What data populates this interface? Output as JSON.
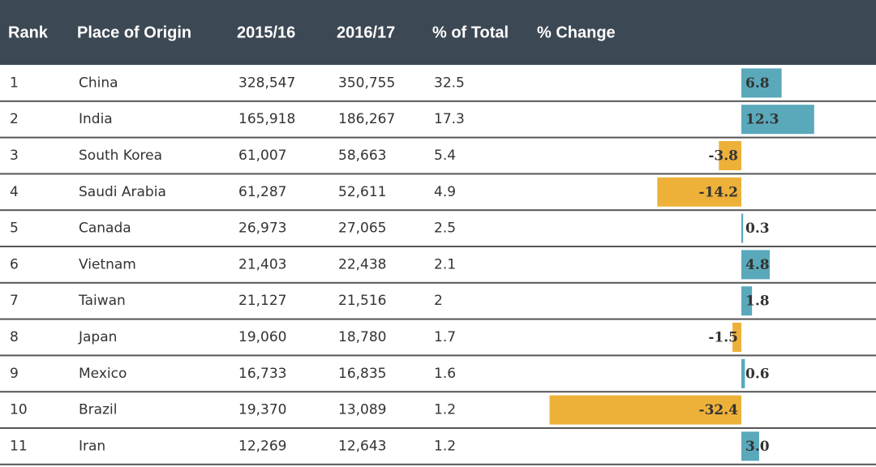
{
  "table": {
    "header": [
      "Rank",
      "Place of Origin",
      "2015/16",
      "2016/17",
      "% of Total",
      "% Change"
    ],
    "rows": [
      [
        "1",
        "China",
        "328,547",
        "350,755",
        "32.5"
      ],
      [
        "2",
        "India",
        "165,918",
        "186,267",
        "17.3"
      ],
      [
        "3",
        "South Korea",
        "61,007",
        "58,663",
        "5.4"
      ],
      [
        "4",
        "Saudi Arabia",
        "61,287",
        "52,611",
        "4.9"
      ],
      [
        "5",
        "Canada",
        "26,973",
        "27,065",
        "2.5"
      ],
      [
        "6",
        "Vietnam",
        "21,403",
        "22,438",
        "2.1"
      ],
      [
        "7",
        "Taiwan",
        "21,127",
        "21,516",
        "2"
      ],
      [
        "8",
        "Japan",
        "19,060",
        "18,780",
        "1.7"
      ],
      [
        "9",
        "Mexico",
        "16,733",
        "16,835",
        "1.6"
      ],
      [
        "10",
        "Brazil",
        "19,370",
        "13,089",
        "1.2"
      ],
      [
        "11",
        "Iran",
        "12,269",
        "12,643",
        "1.2"
      ]
    ],
    "changes": [
      6.8,
      12.3,
      -3.8,
      -14.2,
      0.3,
      4.8,
      1.8,
      -1.5,
      0.6,
      -32.4,
      {
        "value": 3,
        "label": "3.0"
      }
    ],
    "positive_color": "#5aa9bb",
    "negative_color": "#edb13a"
  }
}
